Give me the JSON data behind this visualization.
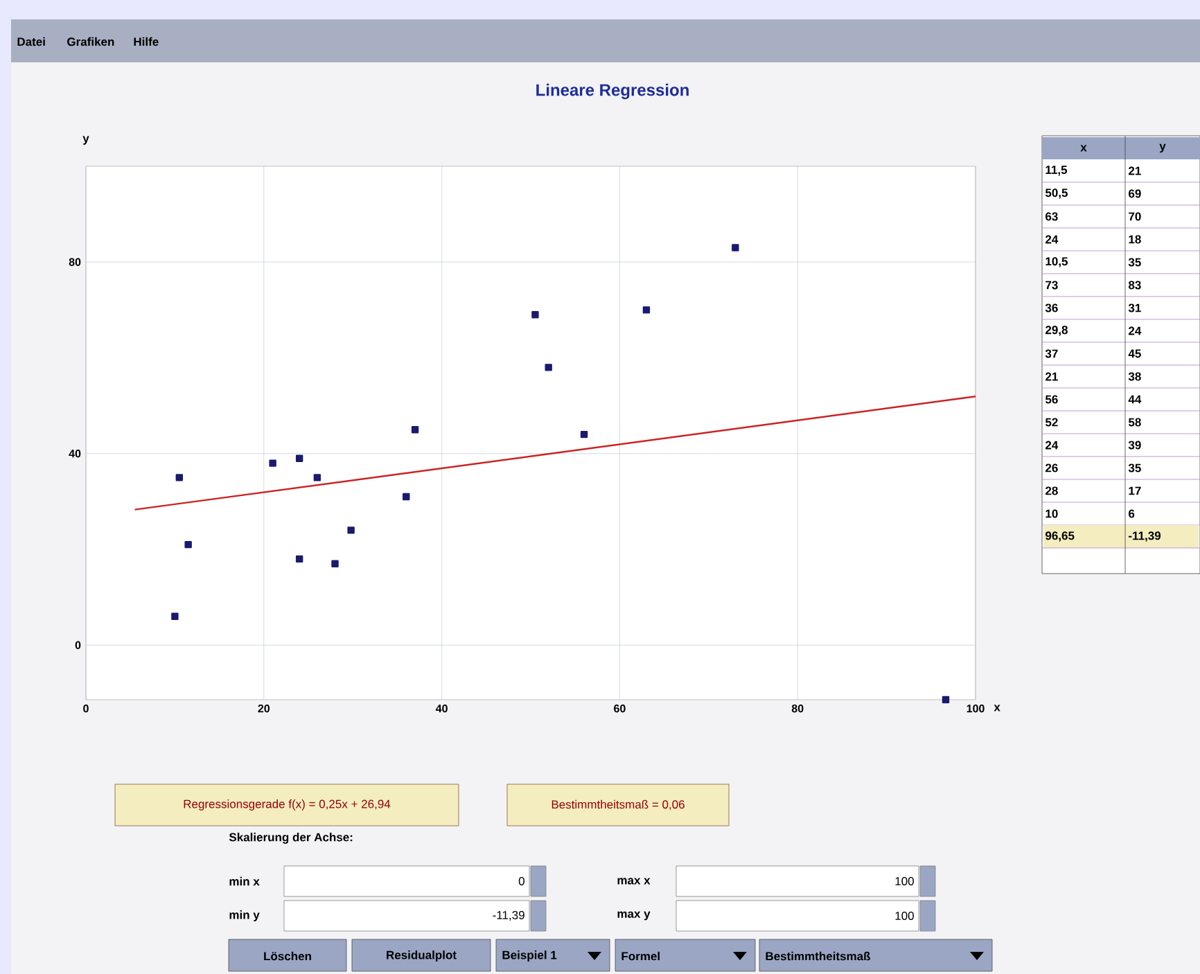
{
  "chart_data": [
    {
      "type": "scatter",
      "title": "Lineare Regression",
      "xlabel": "x",
      "ylabel": "y",
      "xlim": [
        0,
        100
      ],
      "ylim": [
        -11.39,
        100
      ],
      "xticks": [
        0,
        20,
        40,
        60,
        80,
        100
      ],
      "yticks": [
        0,
        40,
        80
      ],
      "grid": true,
      "series": [
        {
          "type": "scatter",
          "color": "#1a1a70",
          "marker": "square",
          "x": [
            11.5,
            50.5,
            63,
            24,
            10.5,
            73,
            36,
            29.8,
            37,
            21,
            56,
            52,
            24,
            26,
            28,
            10,
            96.65
          ],
          "values": [
            21,
            69,
            70,
            18,
            35,
            83,
            31,
            24,
            45,
            38,
            44,
            58,
            39,
            35,
            17,
            6,
            -11.39
          ]
        },
        {
          "type": "line",
          "color": "#cc2222",
          "marker": "none",
          "line_style": "solid",
          "x": [
            5.5,
            100
          ],
          "values": [
            28.3,
            51.94
          ]
        }
      ],
      "annotations": [
        "Datei",
        "Grafiken",
        "Hilfe",
        "Regressionsgerade f(x) = 0,25x + 26,94",
        "Bestimmtheitsmaß = 0,06",
        "Skalierung der Achse:",
        "min x",
        "0",
        "max x",
        "100",
        "min y",
        "-11,39",
        "max y",
        "100",
        "Löschen",
        "Residualplot",
        "Beispiel 1",
        "Formel",
        "Bestimmtheitsmaß"
      ]
    },
    {
      "type": "other",
      "categories": [
        "x",
        "y"
      ],
      "annotations": [
        "11,5",
        "21",
        "50,5",
        "69",
        "63",
        "70",
        "24",
        "18",
        "10,5",
        "35",
        "73",
        "83",
        "36",
        "31",
        "29,8",
        "24",
        "37",
        "45",
        "21",
        "38",
        "56",
        "44",
        "52",
        "58",
        "24",
        "39",
        "26",
        "35",
        "28",
        "17",
        "10",
        "6",
        "96,65",
        "-11,39"
      ]
    }
  ]
}
